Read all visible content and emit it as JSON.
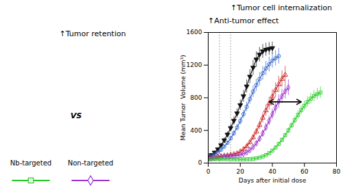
{
  "chart_data": {
    "type": "line",
    "title": "↑Anti-tumor effect",
    "xlabel": "Days after initial dose",
    "ylabel": "Mean Tumor  Volume (mm³)",
    "xlim": [
      0,
      80
    ],
    "ylim": [
      0,
      1600
    ],
    "xticks": [
      0,
      20,
      40,
      60,
      80
    ],
    "yticks": [
      0,
      400,
      800,
      1200,
      1600
    ],
    "grid": false,
    "vlines": [
      7,
      14
    ],
    "series": [
      {
        "color": "#111111",
        "marker": "filled-triangle-down",
        "x": [
          0,
          2,
          4,
          6,
          8,
          10,
          12,
          14,
          16,
          18,
          20,
          22,
          24,
          26,
          28,
          30,
          32,
          34,
          36,
          38,
          40
        ],
        "values": [
          80,
          100,
          130,
          170,
          220,
          280,
          350,
          430,
          520,
          610,
          710,
          820,
          940,
          1060,
          1170,
          1270,
          1330,
          1370,
          1390,
          1400,
          1410
        ],
        "yerr": [
          10,
          12,
          15,
          18,
          22,
          28,
          35,
          42,
          50,
          58,
          65,
          72,
          80,
          88,
          92,
          95,
          90,
          85,
          80,
          78,
          75
        ]
      },
      {
        "color": "#3366cc",
        "marker": "circle",
        "x": [
          0,
          2,
          4,
          6,
          8,
          10,
          12,
          14,
          16,
          18,
          20,
          22,
          24,
          26,
          28,
          30,
          32,
          34,
          36,
          38,
          40,
          42,
          44
        ],
        "values": [
          70,
          85,
          105,
          130,
          162,
          200,
          248,
          302,
          365,
          435,
          515,
          600,
          690,
          785,
          875,
          955,
          1030,
          1100,
          1160,
          1210,
          1255,
          1285,
          1310
        ],
        "yerr": [
          8,
          10,
          12,
          15,
          18,
          22,
          26,
          30,
          35,
          40,
          46,
          52,
          58,
          64,
          70,
          75,
          80,
          84,
          87,
          90,
          92,
          94,
          95
        ]
      },
      {
        "color": "#cc2222",
        "marker": "triangle",
        "x": [
          0,
          2,
          4,
          6,
          8,
          10,
          12,
          14,
          16,
          18,
          20,
          22,
          24,
          26,
          28,
          30,
          32,
          34,
          36,
          38,
          40,
          42,
          44,
          46,
          48
        ],
        "values": [
          55,
          62,
          70,
          78,
          85,
          90,
          95,
          100,
          108,
          120,
          140,
          168,
          205,
          255,
          315,
          385,
          465,
          555,
          645,
          730,
          815,
          895,
          965,
          1030,
          1080
        ],
        "yerr": [
          6,
          7,
          8,
          9,
          10,
          11,
          12,
          13,
          14,
          16,
          18,
          21,
          26,
          32,
          38,
          45,
          53,
          62,
          70,
          78,
          85,
          92,
          98,
          103,
          107
        ]
      },
      {
        "color": "#9933cc",
        "marker": "diamond",
        "x": [
          0,
          2,
          4,
          6,
          8,
          10,
          12,
          14,
          16,
          18,
          20,
          22,
          24,
          26,
          28,
          30,
          32,
          34,
          36,
          38,
          40,
          42,
          44,
          46,
          48,
          50
        ],
        "values": [
          50,
          56,
          62,
          68,
          73,
          77,
          80,
          83,
          86,
          91,
          99,
          112,
          132,
          160,
          196,
          242,
          298,
          364,
          438,
          518,
          600,
          680,
          755,
          820,
          878,
          925
        ],
        "yerr": [
          5,
          6,
          7,
          8,
          9,
          10,
          10,
          11,
          11,
          12,
          13,
          15,
          17,
          20,
          24,
          29,
          35,
          42,
          50,
          58,
          66,
          74,
          81,
          87,
          92,
          96
        ]
      },
      {
        "color": "#22cc22",
        "marker": "square",
        "x": [
          0,
          2,
          4,
          6,
          8,
          10,
          12,
          14,
          16,
          18,
          20,
          22,
          24,
          26,
          28,
          30,
          32,
          34,
          36,
          38,
          40,
          42,
          44,
          46,
          48,
          50,
          52,
          54,
          56,
          58,
          60,
          62,
          64,
          66,
          68,
          70
        ],
        "values": [
          45,
          48,
          50,
          51,
          51,
          50,
          49,
          48,
          47,
          46,
          45,
          45,
          46,
          48,
          52,
          58,
          67,
          80,
          98,
          122,
          152,
          190,
          234,
          284,
          340,
          400,
          462,
          527,
          590,
          648,
          702,
          750,
          790,
          822,
          846,
          864
        ],
        "yerr": [
          5,
          5,
          5,
          6,
          6,
          6,
          6,
          6,
          6,
          6,
          6,
          6,
          6,
          6,
          7,
          7,
          8,
          9,
          10,
          12,
          15,
          18,
          22,
          26,
          30,
          35,
          40,
          45,
          50,
          54,
          58,
          62,
          65,
          68,
          70,
          72
        ]
      }
    ],
    "arrow": {
      "x_start": 38,
      "x_end": 58,
      "y": 750,
      "color": "#111111"
    },
    "annotations": [
      {
        "text": "↑Tumor retention"
      },
      {
        "text": "↑Tumor cell internalization"
      },
      {
        "text": "VS"
      },
      {
        "text": "Nb-targeted",
        "color": "#22cc22",
        "marker": "square"
      },
      {
        "text": "Non-targeted",
        "color": "#9933cc",
        "marker": "diamond"
      }
    ]
  }
}
